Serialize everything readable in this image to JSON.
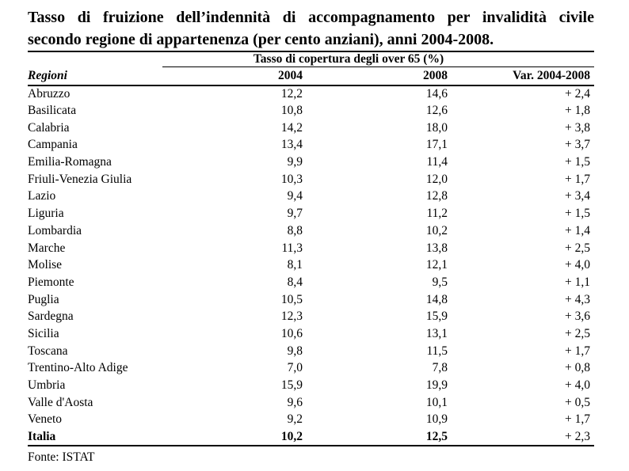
{
  "page": {
    "title_line1": "Tasso di fruizione dell’indennità di accompagnamento per invalidità civile",
    "title_line2": "secondo regione di appartenenza (per cento anziani), anni 2004-2008.",
    "source": "Fonte: ISTAT"
  },
  "table": {
    "group_header": "Tasso di copertura degli over 65 (%)",
    "columns": [
      "Regioni",
      "2004",
      "2008",
      "Var. 2004-2008"
    ],
    "rows": [
      {
        "region": "Abruzzo",
        "v2004": "12,2",
        "v2008": "14,6",
        "var": "+ 2,4",
        "bold": false
      },
      {
        "region": "Basilicata",
        "v2004": "10,8",
        "v2008": "12,6",
        "var": "+ 1,8",
        "bold": false
      },
      {
        "region": "Calabria",
        "v2004": "14,2",
        "v2008": "18,0",
        "var": "+ 3,8",
        "bold": false
      },
      {
        "region": "Campania",
        "v2004": "13,4",
        "v2008": "17,1",
        "var": "+ 3,7",
        "bold": false
      },
      {
        "region": "Emilia-Romagna",
        "v2004": "9,9",
        "v2008": "11,4",
        "var": "+ 1,5",
        "bold": false
      },
      {
        "region": "Friuli-Venezia Giulia",
        "v2004": "10,3",
        "v2008": "12,0",
        "var": "+ 1,7",
        "bold": false
      },
      {
        "region": "Lazio",
        "v2004": "9,4",
        "v2008": "12,8",
        "var": "+ 3,4",
        "bold": false
      },
      {
        "region": "Liguria",
        "v2004": "9,7",
        "v2008": "11,2",
        "var": "+ 1,5",
        "bold": false
      },
      {
        "region": "Lombardia",
        "v2004": "8,8",
        "v2008": "10,2",
        "var": "+ 1,4",
        "bold": false
      },
      {
        "region": "Marche",
        "v2004": "11,3",
        "v2008": "13,8",
        "var": "+ 2,5",
        "bold": false
      },
      {
        "region": "Molise",
        "v2004": "8,1",
        "v2008": "12,1",
        "var": "+ 4,0",
        "bold": false
      },
      {
        "region": "Piemonte",
        "v2004": "8,4",
        "v2008": "9,5",
        "var": "+ 1,1",
        "bold": false
      },
      {
        "region": "Puglia",
        "v2004": "10,5",
        "v2008": "14,8",
        "var": "+ 4,3",
        "bold": false
      },
      {
        "region": "Sardegna",
        "v2004": "12,3",
        "v2008": "15,9",
        "var": "+ 3,6",
        "bold": false
      },
      {
        "region": "Sicilia",
        "v2004": "10,6",
        "v2008": "13,1",
        "var": "+ 2,5",
        "bold": false
      },
      {
        "region": "Toscana",
        "v2004": "9,8",
        "v2008": "11,5",
        "var": "+ 1,7",
        "bold": false
      },
      {
        "region": "Trentino-Alto Adige",
        "v2004": "7,0",
        "v2008": "7,8",
        "var": "+ 0,8",
        "bold": false
      },
      {
        "region": "Umbria",
        "v2004": "15,9",
        "v2008": "19,9",
        "var": "+ 4,0",
        "bold": false
      },
      {
        "region": "Valle d'Aosta",
        "v2004": "9,6",
        "v2008": "10,1",
        "var": "+ 0,5",
        "bold": false
      },
      {
        "region": "Veneto",
        "v2004": "9,2",
        "v2008": "10,9",
        "var": "+ 1,7",
        "bold": false
      },
      {
        "region": "Italia",
        "v2004": "10,2",
        "v2008": "12,5",
        "var": "+ 2,3",
        "bold": true
      }
    ]
  }
}
